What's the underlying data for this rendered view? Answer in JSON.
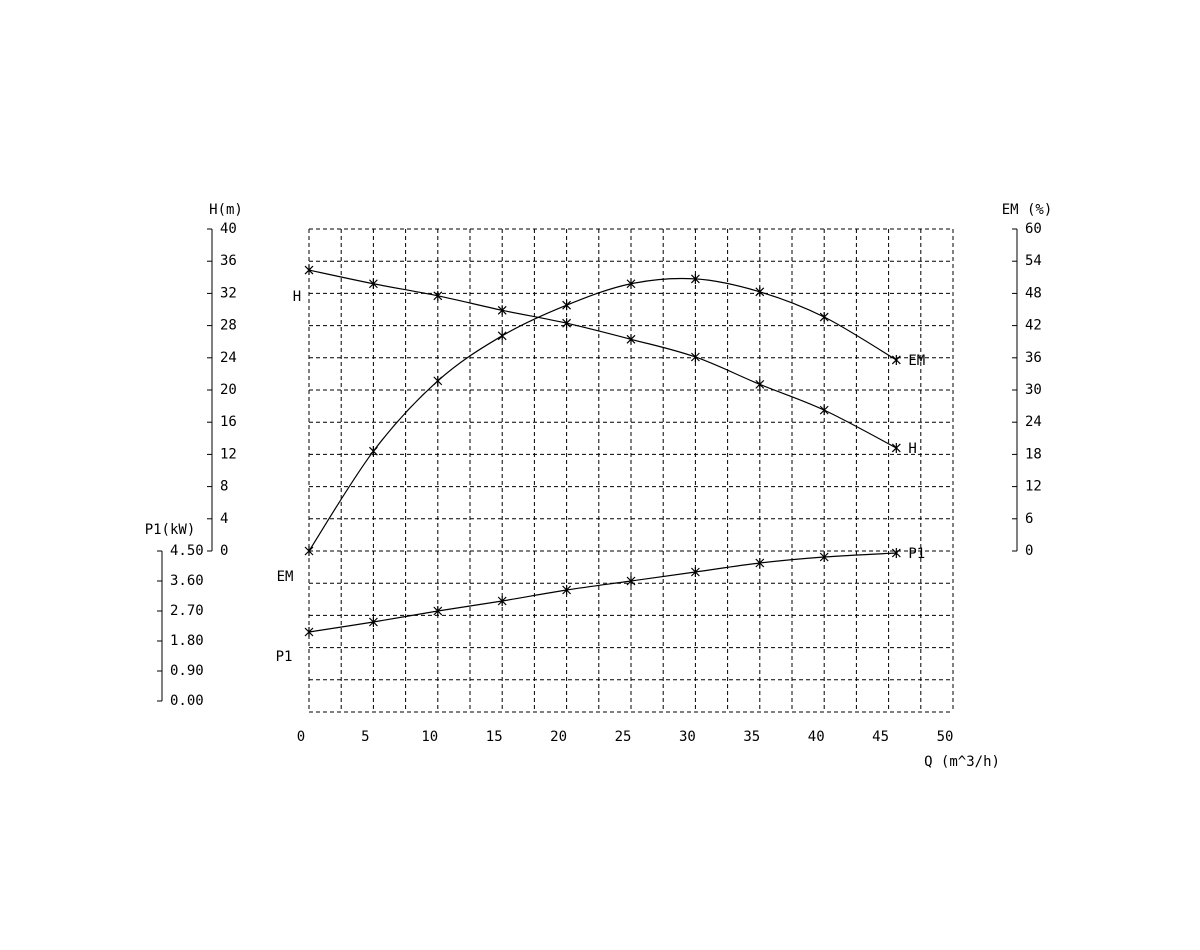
{
  "chart_data": {
    "type": "line",
    "xlabel": "Q (m^3/h)",
    "ylabel": "H(m)",
    "y2label": "EM (%)",
    "y3label": "P1(kW)",
    "x": [
      0,
      5,
      10,
      15,
      20,
      25,
      30,
      35,
      40,
      45.6
    ],
    "series": [
      {
        "name": "H",
        "color": "#000000",
        "axis": "y",
        "values": [
          34.9,
          33.2,
          31.7,
          29.9,
          28.3,
          26.3,
          24.1,
          20.7,
          17.5,
          12.8
        ]
      },
      {
        "name": "EM",
        "color": "#000000",
        "axis": "y2",
        "values": [
          0,
          18.6,
          31.7,
          40.1,
          45.8,
          49.8,
          50.7,
          48.3,
          43.6,
          35.6
        ]
      },
      {
        "name": "P1",
        "color": "#000000",
        "axis": "y3",
        "values": [
          2.07,
          2.37,
          2.7,
          3.0,
          3.33,
          3.6,
          3.87,
          4.14,
          4.32,
          4.44
        ]
      }
    ],
    "xlim": [
      0,
      50
    ],
    "xticks": [
      0,
      5,
      10,
      15,
      20,
      25,
      30,
      35,
      40,
      45,
      50
    ],
    "ylim": [
      0,
      40
    ],
    "yticks": [
      0,
      4,
      8,
      12,
      16,
      20,
      24,
      28,
      32,
      36,
      40
    ],
    "y2lim": [
      0,
      60
    ],
    "y2ticks": [
      0,
      6,
      12,
      18,
      24,
      30,
      36,
      42,
      48,
      54,
      60
    ],
    "y3lim": [
      0,
      4.5
    ],
    "y3ticks": [
      {
        "value": 0,
        "label": "0.00"
      },
      {
        "value": 0.9,
        "label": "0.90"
      },
      {
        "value": 1.8,
        "label": "1.80"
      },
      {
        "value": 2.7,
        "label": "2.70"
      },
      {
        "value": 3.6,
        "label": "3.60"
      },
      {
        "value": 4.5,
        "label": "4.50"
      }
    ],
    "grid": true
  }
}
